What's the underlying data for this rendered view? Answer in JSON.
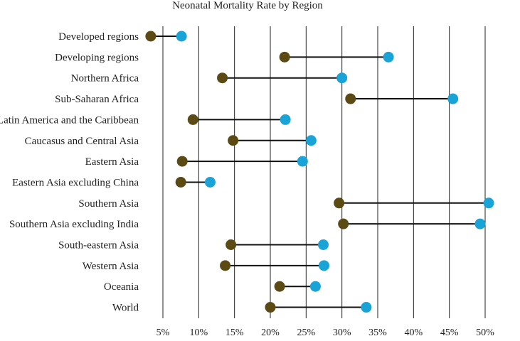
{
  "chart_data": {
    "type": "dumbbell",
    "title": "Neonatal Mortality Rate by Region",
    "xlim": [
      3,
      52
    ],
    "x_ticks": [
      5,
      10,
      15,
      20,
      25,
      30,
      35,
      40,
      45,
      50
    ],
    "x_tick_labels": [
      "5%",
      "10%",
      "15%",
      "20%",
      "25%",
      "30%",
      "35%",
      "40%",
      "45%",
      "50%"
    ],
    "grid": "vertical",
    "categories": [
      "Developed regions",
      "Developing regions",
      "Northern Africa",
      "Sub-Saharan Africa",
      "Latin America and the Caribbean",
      "Caucasus and Central Asia",
      "Eastern Asia",
      "Eastern Asia excluding China",
      "Southern Asia",
      "Southern Asia excluding India",
      "South-eastern Asia",
      "Western Asia",
      "Oceania",
      "World"
    ],
    "series": [
      {
        "color": "#5c4a14",
        "values": [
          3.3,
          22.0,
          13.3,
          31.2,
          9.2,
          14.8,
          7.7,
          7.5,
          29.6,
          30.2,
          14.5,
          13.7,
          21.3,
          20.0
        ]
      },
      {
        "color": "#1aa3d6",
        "values": [
          7.6,
          36.5,
          30.0,
          45.5,
          22.1,
          25.7,
          24.5,
          11.6,
          50.5,
          49.3,
          27.4,
          27.5,
          26.3,
          33.4
        ]
      }
    ]
  }
}
